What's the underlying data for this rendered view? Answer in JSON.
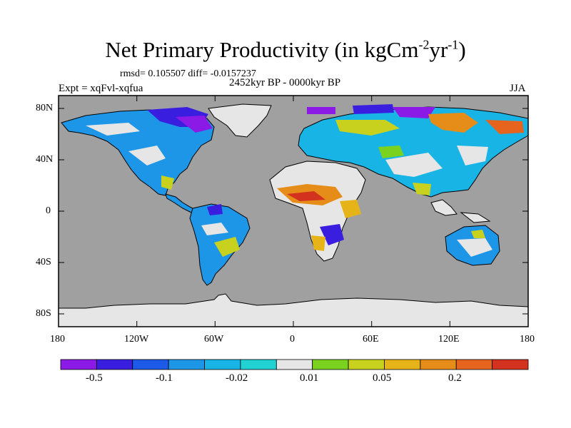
{
  "title": {
    "main": "Net Primary Productivity (in kgCm",
    "exp1": "-2",
    "mid": "yr",
    "exp2": "-1",
    "close": ")"
  },
  "stats_line": "rmsd= 0.105507 diff= -0.0157237",
  "period_line": "2452kyr BP - 0000kyr BP",
  "experiment_label": "Expt = xqFvl-xqfua",
  "season_label": "JJA",
  "y_ticks": [
    "80N",
    "40N",
    "0",
    "40S",
    "80S"
  ],
  "x_ticks": [
    "180",
    "120W",
    "60W",
    "0",
    "60E",
    "120E",
    "180"
  ],
  "colorbar": {
    "colors": [
      "#8b1ae6",
      "#3a1ee0",
      "#1e5ae8",
      "#1e96e8",
      "#19b4e6",
      "#22d2d2",
      "#e6e6e6",
      "#7ad21e",
      "#c8d21e",
      "#e6b419",
      "#e68c19",
      "#e6641e",
      "#d2321e"
    ],
    "labels": [
      "-0.5",
      "-0.1",
      "-0.02",
      "0.01",
      "0.05",
      "0.2"
    ]
  }
}
